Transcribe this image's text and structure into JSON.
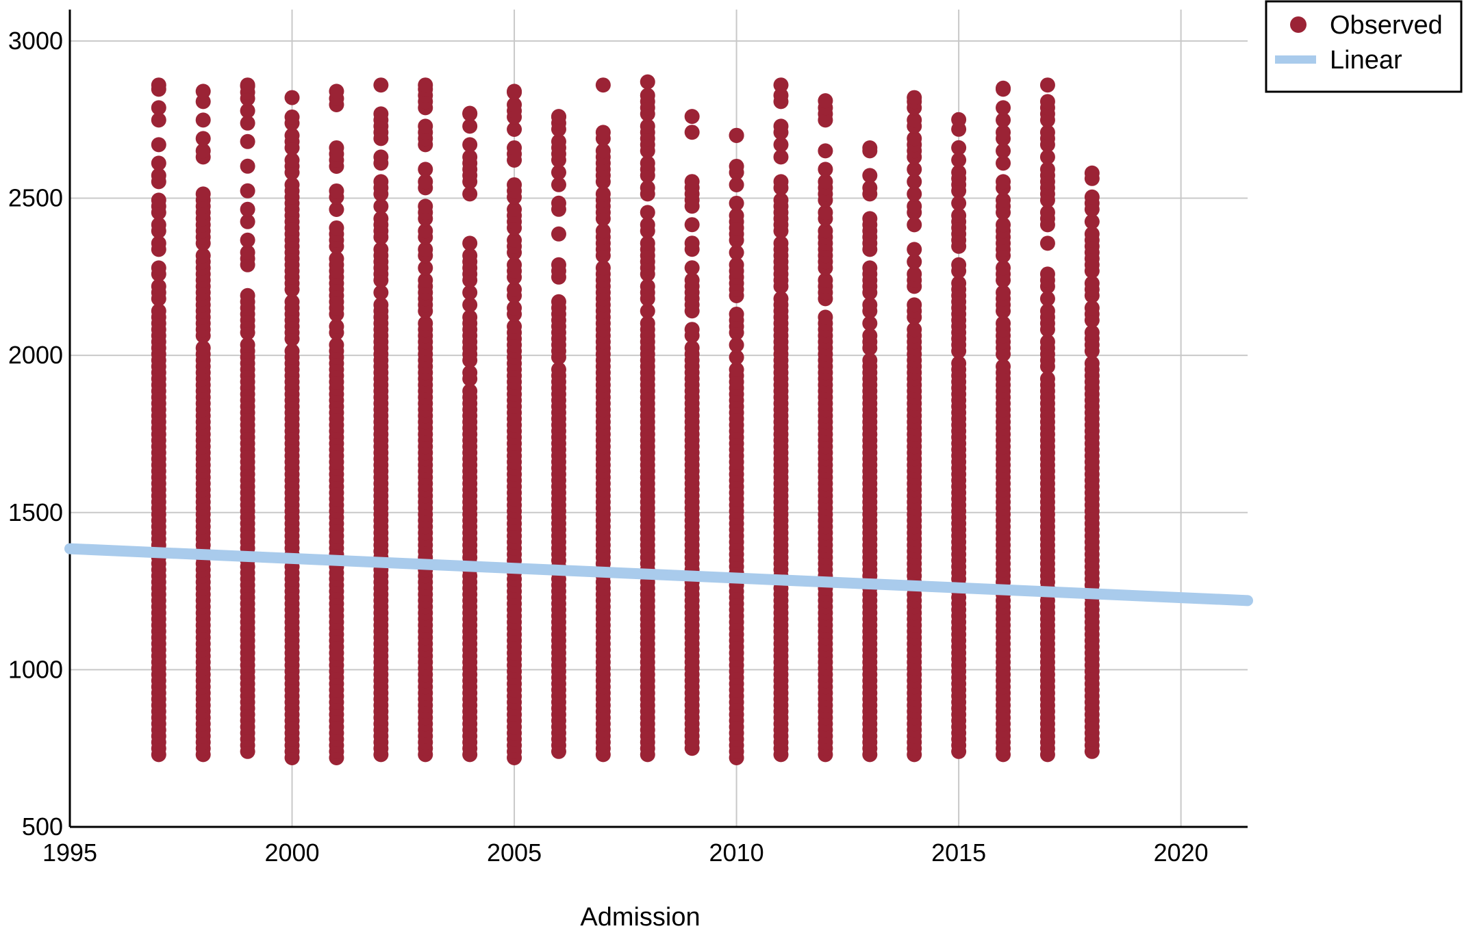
{
  "chart_data": {
    "type": "scatter",
    "title": "",
    "xlabel": "Admission",
    "ylabel": "",
    "xlim": [
      1995,
      2021.5
    ],
    "ylim": [
      500,
      3100
    ],
    "x_ticks": [
      1995,
      2000,
      2005,
      2010,
      2015,
      2020
    ],
    "y_ticks": [
      500,
      1000,
      1500,
      2000,
      2500,
      3000
    ],
    "grid": true,
    "legend_position": "top-right",
    "legend": [
      {
        "label": "Observed",
        "marker": "circle",
        "color": "#9b2335"
      },
      {
        "label": "Linear",
        "marker": "line",
        "color": "#a9cbec"
      }
    ],
    "series": [
      {
        "name": "Observed",
        "kind": "points",
        "color": "#9b2335",
        "columns": [
          {
            "x": 1997,
            "min": 730,
            "max": 2860
          },
          {
            "x": 1998,
            "min": 730,
            "max": 2840
          },
          {
            "x": 1999,
            "min": 740,
            "max": 2860
          },
          {
            "x": 2000,
            "min": 720,
            "max": 2820
          },
          {
            "x": 2001,
            "min": 720,
            "max": 2840
          },
          {
            "x": 2002,
            "min": 730,
            "max": 2860
          },
          {
            "x": 2003,
            "min": 730,
            "max": 2860
          },
          {
            "x": 2004,
            "min": 730,
            "max": 2770
          },
          {
            "x": 2005,
            "min": 720,
            "max": 2840
          },
          {
            "x": 2006,
            "min": 740,
            "max": 2760
          },
          {
            "x": 2007,
            "min": 730,
            "max": 2860
          },
          {
            "x": 2008,
            "min": 730,
            "max": 2870
          },
          {
            "x": 2009,
            "min": 750,
            "max": 2760
          },
          {
            "x": 2010,
            "min": 720,
            "max": 2700
          },
          {
            "x": 2011,
            "min": 730,
            "max": 2860
          },
          {
            "x": 2012,
            "min": 730,
            "max": 2810
          },
          {
            "x": 2013,
            "min": 730,
            "max": 2660
          },
          {
            "x": 2014,
            "min": 730,
            "max": 2820
          },
          {
            "x": 2015,
            "min": 740,
            "max": 2750
          },
          {
            "x": 2016,
            "min": 730,
            "max": 2850
          },
          {
            "x": 2017,
            "min": 730,
            "max": 2860
          },
          {
            "x": 2018,
            "min": 740,
            "max": 2580
          }
        ]
      },
      {
        "name": "Linear",
        "kind": "line",
        "color": "#a9cbec",
        "x": [
          1995,
          2021.5
        ],
        "y": [
          1385,
          1220
        ]
      }
    ]
  }
}
